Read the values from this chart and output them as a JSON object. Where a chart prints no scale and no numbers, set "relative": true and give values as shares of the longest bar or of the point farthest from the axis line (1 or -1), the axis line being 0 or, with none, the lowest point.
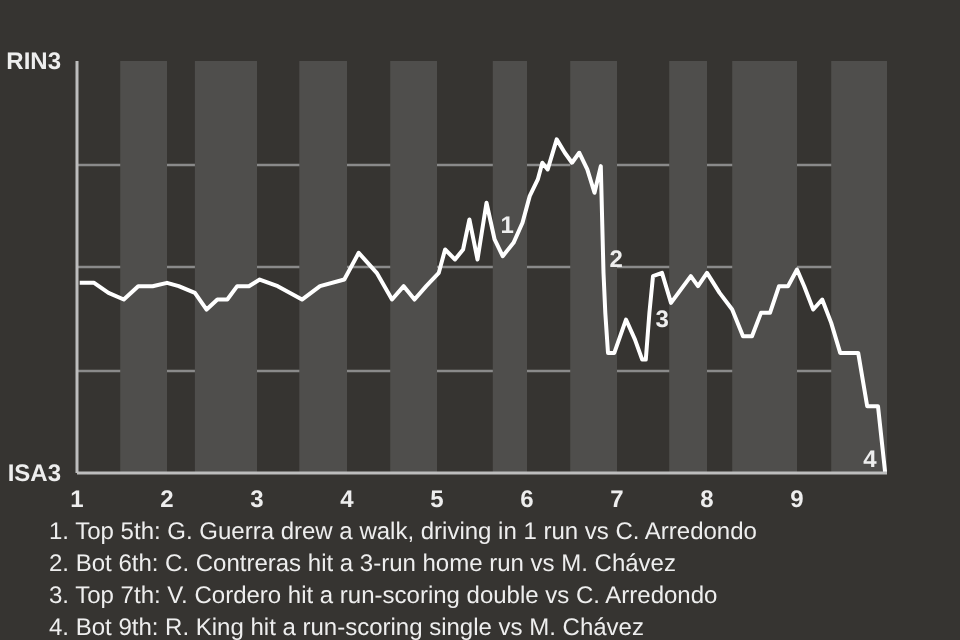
{
  "chart_data": {
    "type": "line",
    "relative": true,
    "x": [
      1.03,
      1.19,
      1.35,
      1.52,
      1.68,
      1.84,
      2.0,
      2.13,
      2.31,
      2.44,
      2.56,
      2.67,
      2.78,
      2.91,
      3.03,
      3.23,
      3.5,
      3.7,
      3.97,
      4.13,
      4.33,
      4.5,
      4.63,
      4.75,
      4.88,
      5.02,
      5.09,
      5.2,
      5.29,
      5.36,
      5.45,
      5.55,
      5.64,
      5.73,
      5.85,
      5.95,
      6.03,
      6.12,
      6.17,
      6.23,
      6.33,
      6.42,
      6.5,
      6.58,
      6.67,
      6.75,
      6.82,
      6.85,
      6.87,
      6.9,
      6.97,
      7.1,
      7.2,
      7.28,
      7.32,
      7.36,
      7.4,
      7.5,
      7.6,
      7.82,
      7.9,
      8.0,
      8.14,
      8.28,
      8.4,
      8.5,
      8.6,
      8.7,
      8.8,
      8.9,
      9.0,
      9.08,
      9.18,
      9.28,
      9.38,
      9.48,
      9.58,
      9.68,
      9.78,
      9.9,
      9.98
    ],
    "series": [
      {
        "color": "#ffffff",
        "values": [
          0.57,
          0.57,
          0.54,
          0.52,
          0.56,
          0.56,
          0.57,
          0.56,
          0.54,
          0.49,
          0.52,
          0.52,
          0.56,
          0.56,
          0.58,
          0.56,
          0.52,
          0.56,
          0.58,
          0.66,
          0.6,
          0.52,
          0.56,
          0.52,
          0.56,
          0.6,
          0.67,
          0.64,
          0.67,
          0.76,
          0.64,
          0.81,
          0.7,
          0.65,
          0.69,
          0.75,
          0.83,
          0.88,
          0.93,
          0.91,
          1.0,
          0.96,
          0.93,
          0.96,
          0.91,
          0.84,
          0.92,
          0.6,
          0.48,
          0.36,
          0.36,
          0.46,
          0.4,
          0.34,
          0.34,
          0.48,
          0.59,
          0.6,
          0.51,
          0.59,
          0.56,
          0.6,
          0.54,
          0.49,
          0.41,
          0.41,
          0.48,
          0.48,
          0.56,
          0.56,
          0.61,
          0.56,
          0.49,
          0.52,
          0.45,
          0.36,
          0.36,
          0.36,
          0.2,
          0.2,
          0
        ]
      }
    ],
    "xlim": [
      1,
      10
    ],
    "xticks": [
      1,
      2,
      3,
      4,
      5,
      6,
      7,
      8,
      9
    ],
    "grid": "y",
    "bands": [
      {
        "axis": "x",
        "from": 1.48,
        "to": 2,
        "color": "#4f4e4c"
      },
      {
        "axis": "x",
        "from": 2.31,
        "to": 3,
        "color": "#4f4e4c"
      },
      {
        "axis": "x",
        "from": 3.47,
        "to": 4,
        "color": "#4f4e4c"
      },
      {
        "axis": "x",
        "from": 4.48,
        "to": 5,
        "color": "#4f4e4c"
      },
      {
        "axis": "x",
        "from": 5.62,
        "to": 6,
        "color": "#4f4e4c"
      },
      {
        "axis": "x",
        "from": 6.48,
        "to": 7,
        "color": "#4f4e4c"
      },
      {
        "axis": "x",
        "from": 7.58,
        "to": 8,
        "color": "#4f4e4c"
      },
      {
        "axis": "x",
        "from": 8.28,
        "to": 9,
        "color": "#4f4e4c"
      },
      {
        "axis": "x",
        "from": 9.38,
        "to": 10,
        "color": "#4f4e4c"
      }
    ],
    "annotations": [
      "RIN3",
      "ISA3",
      {
        "text": "1",
        "x": 5.64,
        "y": 0.7
      },
      {
        "text": "2",
        "x": 6.85,
        "y": 0.6
      },
      {
        "text": "3",
        "x": 7.36,
        "y": 0.42
      },
      {
        "text": "4",
        "x": 9.98,
        "y": 0
      },
      "1. Top 5th: G. Guerra drew a walk, driving in 1 run vs C. Arredondo",
      "2. Bot 6th: C. Contreras hit a 3-run home run vs M. Chávez",
      "3. Top 7th: V. Cordero hit a run-scoring double vs C. Arredondo",
      "4. Bot 9th: R. King hit a run-scoring single vs M. Chávez"
    ]
  }
}
